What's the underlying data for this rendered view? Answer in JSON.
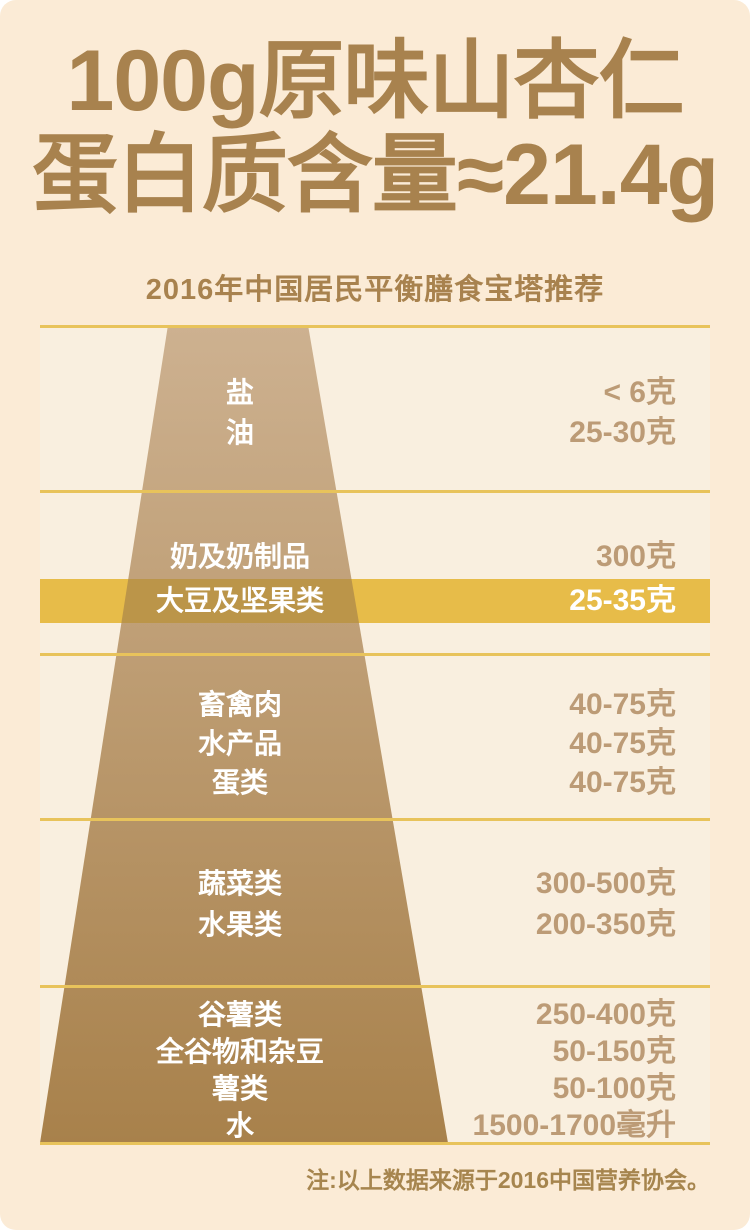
{
  "title": {
    "line1": "100g原味山杏仁",
    "line2": "蛋白质含量≈21.4g"
  },
  "subtitle": "2016年中国居民平衡膳食宝塔推荐",
  "footnote": "注:以上数据来源于2016中国营养协会。",
  "colors": {
    "page_bg": "#FBEBD6",
    "chart_bg": "#F9EFDF",
    "pyramid_top": "#CDB190",
    "pyramid_bottom": "#A8814B",
    "divider_gold": "#E8C35B",
    "highlight_gold": "#E7BC49",
    "highlight_overlap": "#BB9549",
    "title_brown": "#A8824E",
    "value_brown": "#BC9B76",
    "label_white": "#FFFFFF"
  },
  "pyramid": {
    "tiers": [
      {
        "rows": [
          {
            "label": "盐",
            "value": "< 6克"
          },
          {
            "label": "油",
            "value": "25-30克"
          }
        ]
      },
      {
        "rows": [
          {
            "label": "奶及奶制品",
            "value": "300克"
          },
          {
            "label": "大豆及坚果类",
            "value": "25-35克",
            "highlighted": true
          }
        ]
      },
      {
        "rows": [
          {
            "label": "畜禽肉",
            "value": "40-75克"
          },
          {
            "label": "水产品",
            "value": "40-75克"
          },
          {
            "label": "蛋类",
            "value": "40-75克"
          }
        ]
      },
      {
        "rows": [
          {
            "label": "蔬菜类",
            "value": "300-500克"
          },
          {
            "label": "水果类",
            "value": "200-350克"
          }
        ]
      },
      {
        "rows": [
          {
            "label": "谷薯类",
            "value": "250-400克"
          },
          {
            "label": "全谷物和杂豆",
            "value": "50-150克"
          },
          {
            "label": "薯类",
            "value": "50-100克"
          },
          {
            "label": "水",
            "value": "1500-1700毫升"
          }
        ]
      }
    ]
  }
}
